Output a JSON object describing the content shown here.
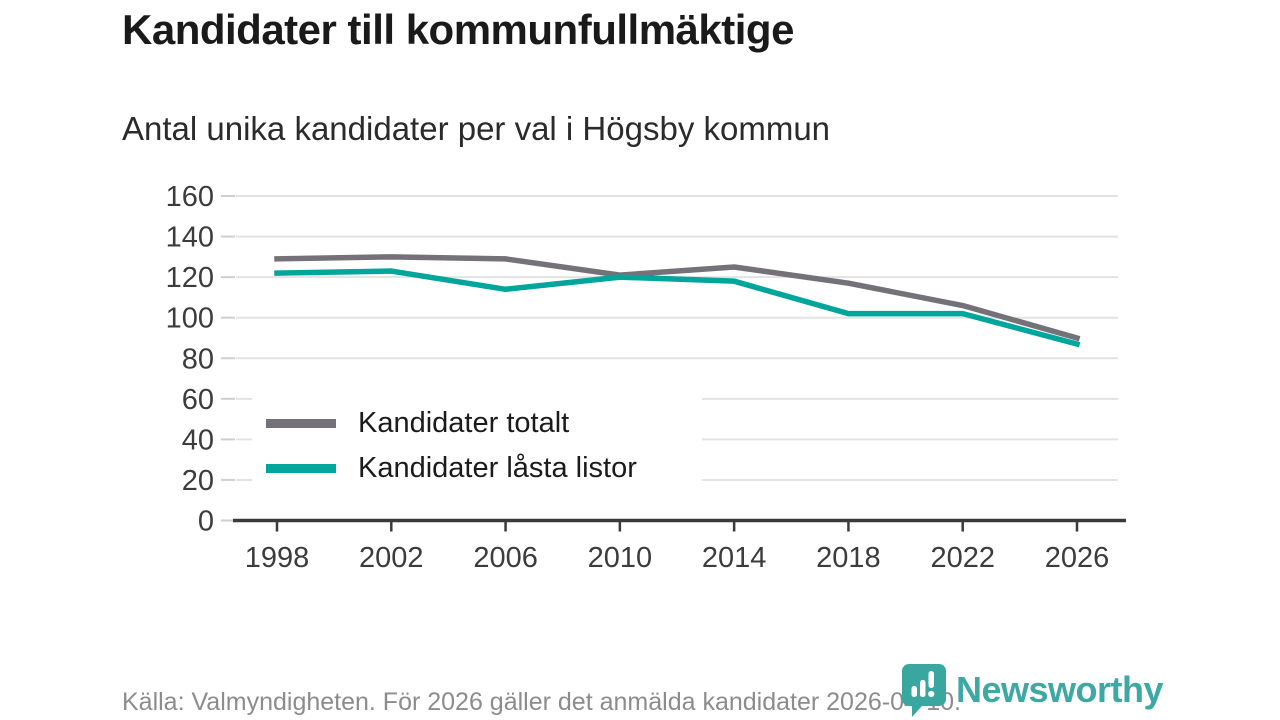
{
  "header": {
    "title": "Kandidater till kommunfullmäktige",
    "subtitle": "Antal unika kandidater per val i Högsby kommun"
  },
  "chart_data": {
    "type": "line",
    "title": "Kandidater till kommunfullmäktige",
    "subtitle": "Antal unika kandidater per val i Högsby kommun",
    "x": [
      1998,
      2002,
      2006,
      2010,
      2014,
      2018,
      2022,
      2026
    ],
    "xticklabels": [
      "1998",
      "2002",
      "2006",
      "2010",
      "2014",
      "2018",
      "2022",
      "2026"
    ],
    "series": [
      {
        "name": "Kandidater totalt",
        "color": "#757179",
        "values": [
          129,
          130,
          129,
          121,
          125,
          117,
          106,
          90
        ]
      },
      {
        "name": "Kandidater låsta listor",
        "color": "#00a59b",
        "values": [
          122,
          123,
          114,
          120,
          118,
          102,
          102,
          87
        ]
      }
    ],
    "ylim": [
      0,
      160
    ],
    "yticks": [
      0,
      20,
      40,
      60,
      80,
      100,
      120,
      140,
      160
    ],
    "grid": true,
    "legend_position": "inside-lower-left"
  },
  "footer": {
    "source": "Källa: Valmyndigheten. För 2026 gäller det anmälda kandidater 2026-04-10.",
    "brand": "Newsworthy"
  },
  "colors": {
    "accent_teal": "#00a59b",
    "line_gray": "#757179",
    "brand_teal": "#2da19d",
    "grid": "#e3e3e3",
    "minor_tick": "#cfcfcf",
    "axis": "#3a3a3a",
    "title_text": "#1a1a1a",
    "muted_text": "#8c8c8c"
  }
}
